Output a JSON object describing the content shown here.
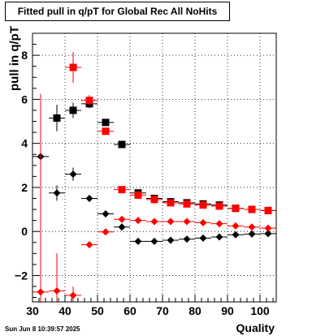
{
  "header": {
    "title": "Fitted pull in q/pT for Global Rec All NoHits"
  },
  "footer": {
    "timestamp": "Sun Jun  8 10:39:57 2025"
  },
  "colors": {
    "series_black": "#000000",
    "series_red": "#ff0000",
    "axis": "#000000",
    "grid": "#000000"
  },
  "chart_data": {
    "type": "scatter",
    "title": "Fitted pull in q/pT for Global Rec All NoHits",
    "xlabel": "Quality",
    "ylabel": "pull in q/pT",
    "xlim": [
      30,
      105
    ],
    "ylim": [
      -3.2,
      9.0
    ],
    "xticks": [
      30,
      40,
      50,
      60,
      70,
      80,
      90,
      100
    ],
    "yticks": [
      -2,
      0,
      2,
      4,
      6,
      8
    ],
    "grid": true,
    "series": [
      {
        "marker": "square",
        "color": "#000000",
        "points": [
          {
            "x": 37.5,
            "y": 5.15,
            "yerr": 0.6
          },
          {
            "x": 42.5,
            "y": 5.5,
            "yerr": 0.35
          },
          {
            "x": 47.5,
            "y": 5.8,
            "yerr": 0.2
          },
          {
            "x": 52.5,
            "y": 4.95,
            "yerr": 0.1
          },
          {
            "x": 57.5,
            "y": 3.95,
            "yerr": 0.08
          },
          {
            "x": 62.5,
            "y": 1.75,
            "yerr": 0.06
          },
          {
            "x": 67.5,
            "y": 1.5,
            "yerr": 0.05
          },
          {
            "x": 72.5,
            "y": 1.35,
            "yerr": 0.05
          },
          {
            "x": 77.5,
            "y": 1.3,
            "yerr": 0.05
          },
          {
            "x": 82.5,
            "y": 1.25,
            "yerr": 0.05
          },
          {
            "x": 87.5,
            "y": 1.2,
            "yerr": 0.05
          },
          {
            "x": 92.5,
            "y": 1.05,
            "yerr": 0.05
          },
          {
            "x": 97.5,
            "y": 1.0,
            "yerr": 0.05
          },
          {
            "x": 102.5,
            "y": 0.95,
            "yerr": 0.05
          }
        ]
      },
      {
        "marker": "square",
        "color": "#ff0000",
        "points": [
          {
            "x": 42.5,
            "y": 7.45,
            "yerr": 0.7
          },
          {
            "x": 47.5,
            "y": 5.95,
            "yerr": 0.25
          },
          {
            "x": 52.5,
            "y": 4.55,
            "yerr": 0.12
          },
          {
            "x": 57.5,
            "y": 1.9,
            "yerr": 0.08
          },
          {
            "x": 62.5,
            "y": 1.65,
            "yerr": 0.06
          },
          {
            "x": 67.5,
            "y": 1.45,
            "yerr": 0.05
          },
          {
            "x": 72.5,
            "y": 1.3,
            "yerr": 0.05
          },
          {
            "x": 77.5,
            "y": 1.25,
            "yerr": 0.05
          },
          {
            "x": 82.5,
            "y": 1.2,
            "yerr": 0.05
          },
          {
            "x": 87.5,
            "y": 1.15,
            "yerr": 0.05
          },
          {
            "x": 92.5,
            "y": 1.05,
            "yerr": 0.05
          },
          {
            "x": 97.5,
            "y": 1.0,
            "yerr": 0.05
          },
          {
            "x": 102.5,
            "y": 0.95,
            "yerr": 0.05
          }
        ]
      },
      {
        "marker": "diamond",
        "color": "#000000",
        "points": [
          {
            "x": 32.5,
            "y": 3.4,
            "yerr": 0.3
          },
          {
            "x": 37.5,
            "y": 1.75,
            "yerr": 0.35
          },
          {
            "x": 42.5,
            "y": 2.6,
            "yerr": 0.3
          },
          {
            "x": 47.5,
            "y": 1.5,
            "yerr": 0.12
          },
          {
            "x": 52.5,
            "y": 0.8,
            "yerr": 0.08
          },
          {
            "x": 57.5,
            "y": 0.2,
            "yerr": 0.06
          },
          {
            "x": 62.5,
            "y": -0.45,
            "yerr": 0.05
          },
          {
            "x": 67.5,
            "y": -0.45,
            "yerr": 0.05
          },
          {
            "x": 72.5,
            "y": -0.4,
            "yerr": 0.05
          },
          {
            "x": 77.5,
            "y": -0.35,
            "yerr": 0.05
          },
          {
            "x": 82.5,
            "y": -0.3,
            "yerr": 0.05
          },
          {
            "x": 87.5,
            "y": -0.25,
            "yerr": 0.05
          },
          {
            "x": 92.5,
            "y": -0.15,
            "yerr": 0.05
          },
          {
            "x": 97.5,
            "y": -0.12,
            "yerr": 0.05
          },
          {
            "x": 102.5,
            "y": -0.1,
            "yerr": 0.05
          }
        ]
      },
      {
        "marker": "diamond",
        "color": "#ff0000",
        "points": [
          {
            "x": 32.5,
            "y": -2.75,
            "yerr": 9.0
          },
          {
            "x": 37.5,
            "y": -2.7,
            "yerr": 1.7
          },
          {
            "x": 42.5,
            "y": -2.9,
            "yerr": 0.4
          },
          {
            "x": 47.5,
            "y": -0.6,
            "yerr": 0.1
          },
          {
            "x": 52.5,
            "y": -0.02,
            "yerr": 0.06
          },
          {
            "x": 57.5,
            "y": 0.55,
            "yerr": 0.05
          },
          {
            "x": 62.5,
            "y": 0.5,
            "yerr": 0.05
          },
          {
            "x": 67.5,
            "y": 0.45,
            "yerr": 0.05
          },
          {
            "x": 72.5,
            "y": 0.45,
            "yerr": 0.05
          },
          {
            "x": 77.5,
            "y": 0.45,
            "yerr": 0.05
          },
          {
            "x": 82.5,
            "y": 0.4,
            "yerr": 0.05
          },
          {
            "x": 87.5,
            "y": 0.35,
            "yerr": 0.05
          },
          {
            "x": 92.5,
            "y": 0.25,
            "yerr": 0.05
          },
          {
            "x": 97.5,
            "y": 0.2,
            "yerr": 0.05
          },
          {
            "x": 102.5,
            "y": 0.15,
            "yerr": 0.05
          }
        ]
      }
    ]
  }
}
